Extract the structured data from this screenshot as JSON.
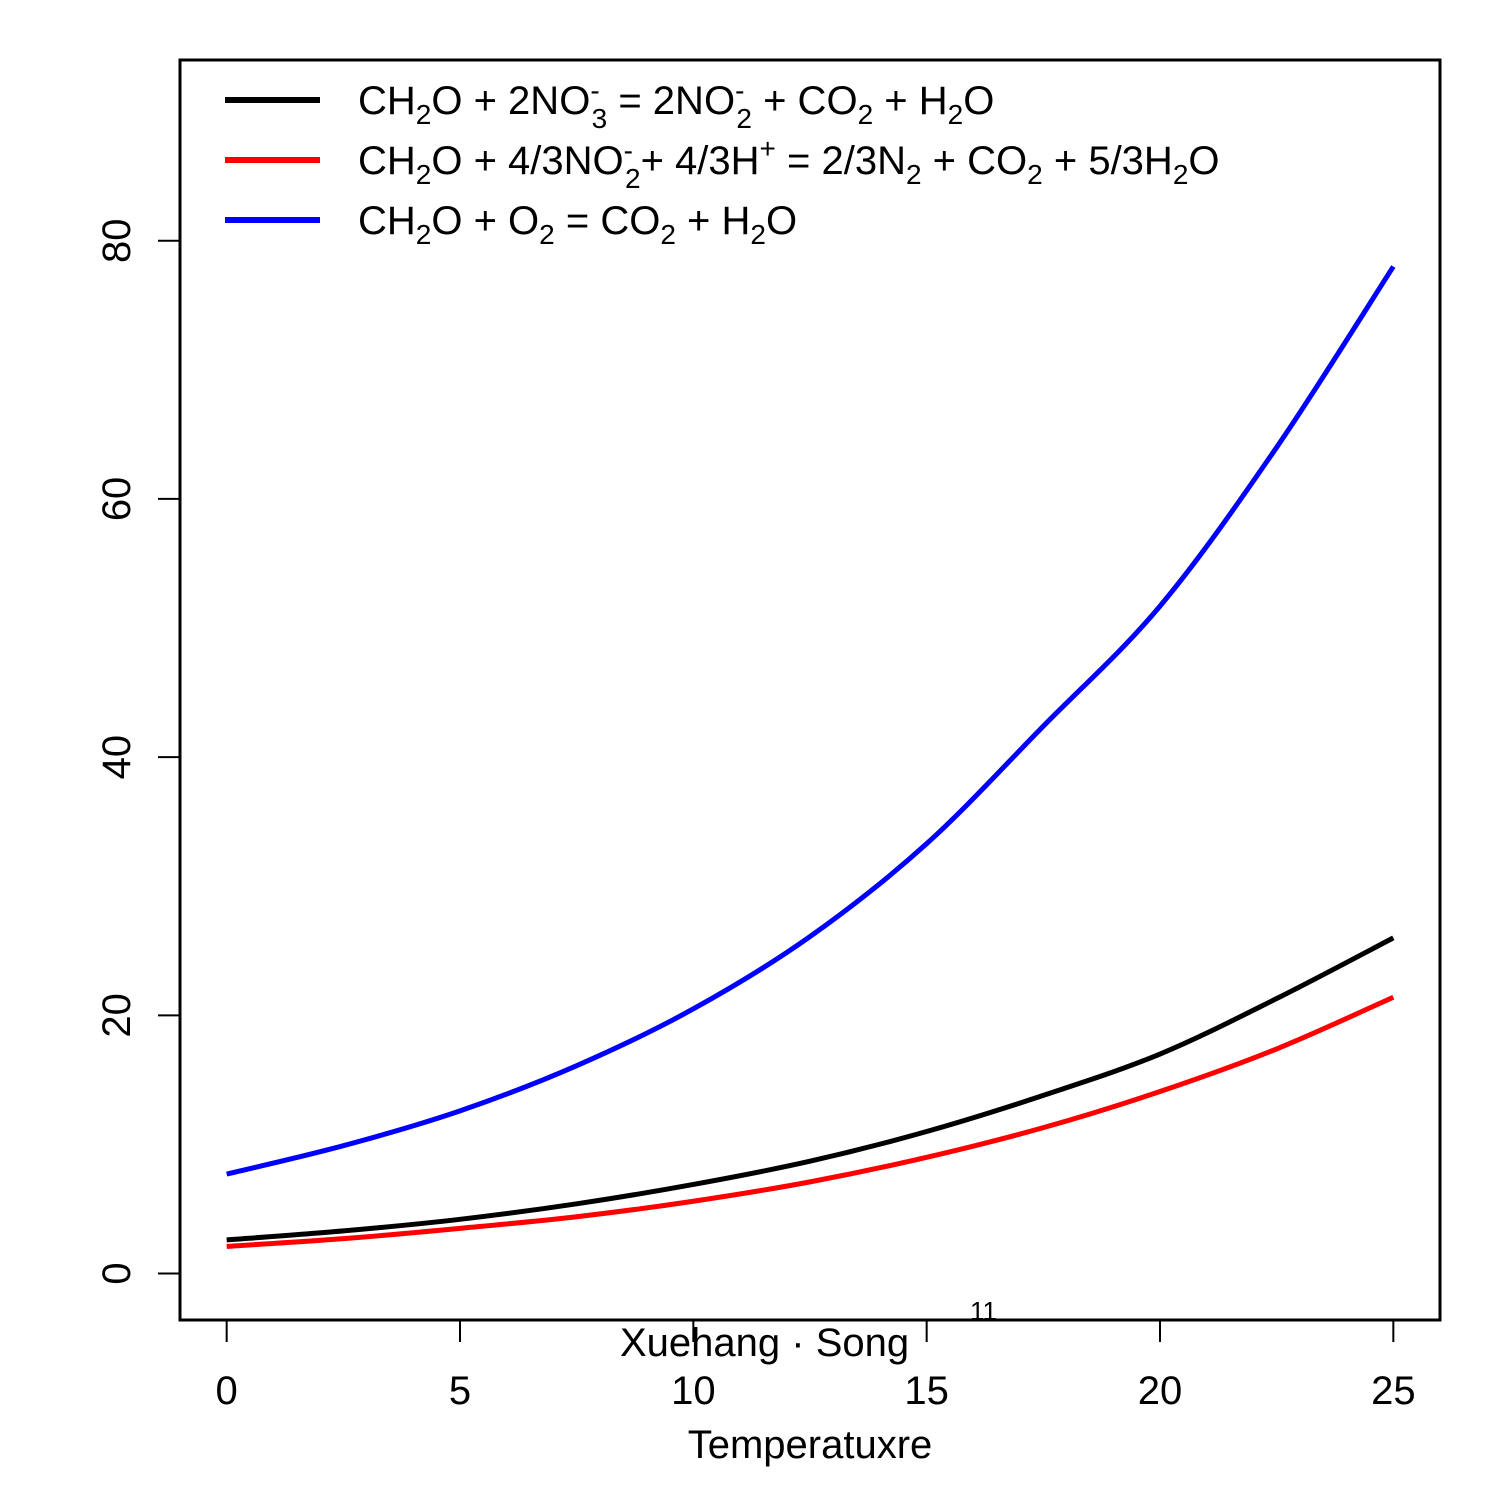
{
  "chart_data": {
    "type": "line",
    "xlabel": "Temperatuxre",
    "ylabel": "",
    "xlim": [
      -1,
      26
    ],
    "ylim": [
      -3.6,
      94
    ],
    "x_ticks": [
      "0",
      "5",
      "10",
      "15",
      "20",
      "25"
    ],
    "y_ticks": [
      "0",
      "20",
      "40",
      "60",
      "80"
    ],
    "grid": false,
    "legend_position": "top-left",
    "annotation": {
      "text": "Xuehang · Song",
      "superscript": "11"
    },
    "series": [
      {
        "name": "CH2O + 2NO3- = 2NO2- + CO2 + H2O",
        "color": "#000000",
        "x": [
          0,
          2.5,
          5,
          7.5,
          10,
          12.5,
          15,
          17.5,
          20,
          22.5,
          25
        ],
        "y": [
          2.6,
          3.3,
          4.2,
          5.4,
          6.9,
          8.7,
          11.0,
          13.8,
          17.0,
          21.3,
          26.0
        ]
      },
      {
        "name": "CH2O + 4/3NO2- + 4/3H+ = 2/3N2 + CO2 + 5/3H2O",
        "color": "#ff0000",
        "x": [
          0,
          2.5,
          5,
          7.5,
          10,
          12.5,
          15,
          17.5,
          20,
          22.5,
          25
        ],
        "y": [
          2.1,
          2.7,
          3.5,
          4.4,
          5.6,
          7.1,
          9.0,
          11.3,
          14.1,
          17.4,
          21.4
        ]
      },
      {
        "name": "CH2O + O2 = CO2 + H2O",
        "color": "#0000ff",
        "x": [
          0,
          2.5,
          5,
          7.5,
          10,
          12.5,
          15,
          17.5,
          20,
          22.5,
          25
        ],
        "y": [
          7.7,
          9.9,
          12.6,
          16.1,
          20.5,
          26.1,
          33.3,
          42.4,
          51.7,
          64.0,
          78.0
        ]
      }
    ]
  }
}
